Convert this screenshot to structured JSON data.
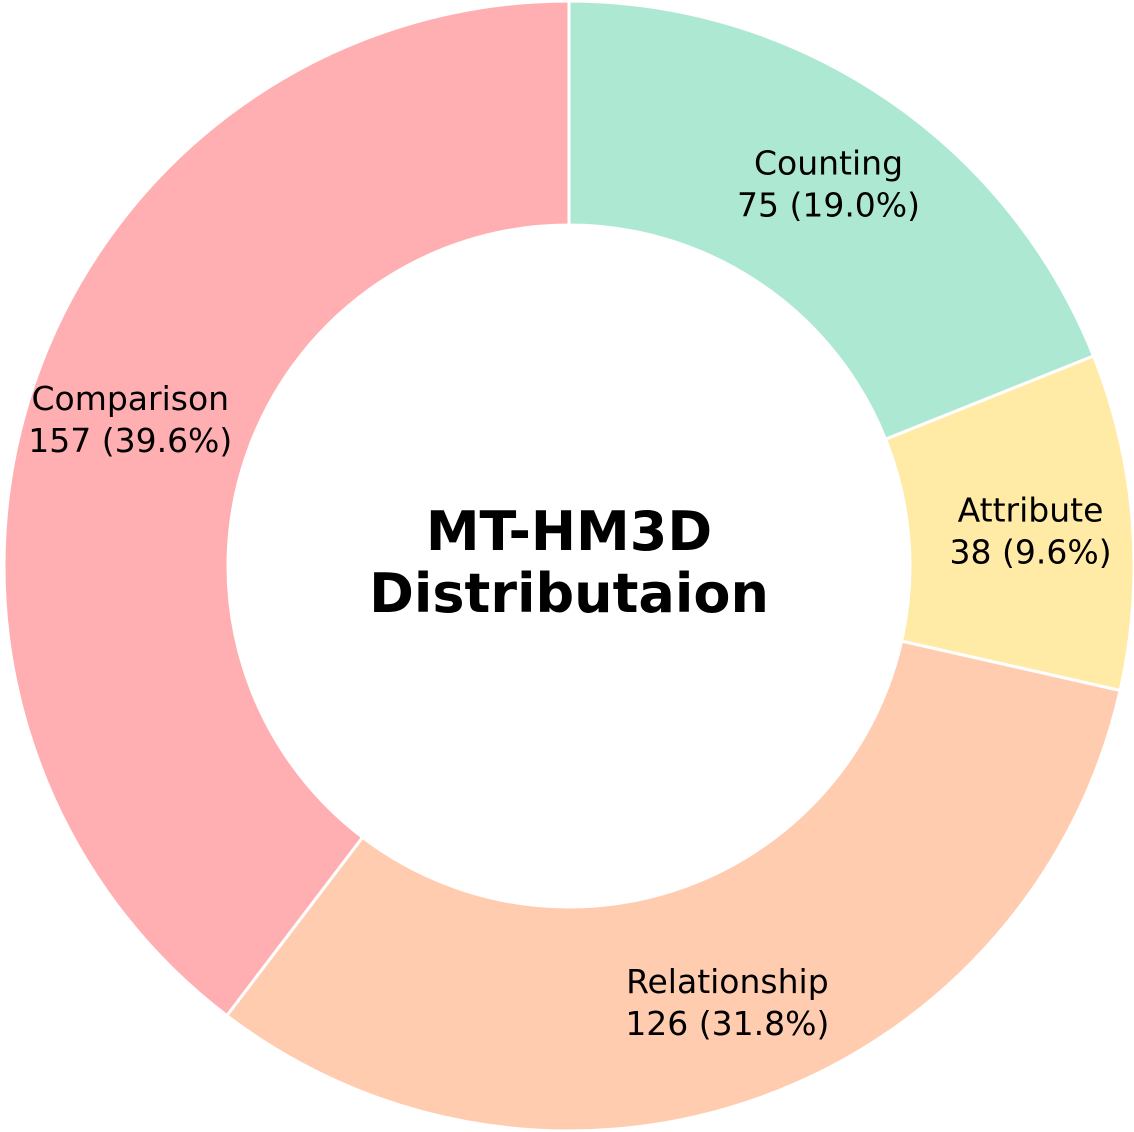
{
  "chart_data": {
    "type": "pie",
    "title_lines": [
      "MT-HM3D",
      "Distributaion"
    ],
    "categories": [
      "Counting",
      "Attribute",
      "Relationship",
      "Comparison"
    ],
    "values": [
      75,
      38,
      126,
      157
    ],
    "value_labels": [
      "75 (19.0%)",
      "38 (9.6%)",
      "126 (31.8%)",
      "157 (39.6%)"
    ],
    "colors": [
      "#ADE8D3",
      "#FFEAA6",
      "#FFCCB0",
      "#FFAFB2"
    ],
    "start_angle": "top (12 o'clock)",
    "direction": "clockwise",
    "hole": true,
    "legend": "none"
  }
}
